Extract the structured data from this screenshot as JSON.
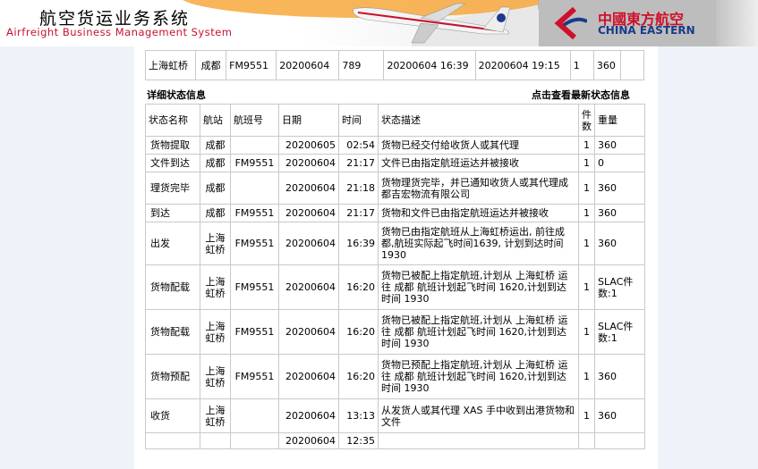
{
  "header": {
    "title_cn": "航空货运业务系统",
    "title_en": "Airfreight Business Management System",
    "logo_cn": "中國東方航空",
    "logo_en": "CHINA EASTERN"
  },
  "summary": {
    "cells": [
      "上海虹桥",
      "成都",
      "FM9551",
      "20200604",
      "789",
      "20200604 16:39",
      "20200604 19:15",
      "1",
      "360",
      ""
    ]
  },
  "section": {
    "title": "详细状态信息",
    "refresh_link": "点击查看最新状态信息"
  },
  "table": {
    "headers": [
      "状态名称",
      "航站",
      "航班号",
      "日期",
      "时间",
      "状态描述",
      "件数",
      "重量"
    ],
    "rows": [
      [
        "货物提取",
        "成都",
        "",
        "20200605",
        "02:54",
        "货物已经交付给收货人或其代理",
        "1",
        "360"
      ],
      [
        "文件到达",
        "成都",
        "FM9551",
        "20200604",
        "21:17",
        "文件已由指定航班运达并被接收",
        "1",
        "0"
      ],
      [
        "理货完毕",
        "成都",
        "",
        "20200604",
        "21:18",
        "货物理货完毕，并已通知收货人或其代理成都吉宏物流有限公司",
        "1",
        "360"
      ],
      [
        "到达",
        "成都",
        "FM9551",
        "20200604",
        "21:17",
        "货物和文件已由指定航班运达并被接收",
        "1",
        "360"
      ],
      [
        "出发",
        "上海虹桥",
        "FM9551",
        "20200604",
        "16:39",
        "货物已由指定航班从上海虹桥运出, 前往成都,航班实际起飞时间1639, 计划到达时间1930",
        "1",
        "360"
      ],
      [
        "货物配载",
        "上海虹桥",
        "FM9551",
        "20200604",
        "16:20",
        "货物已被配上指定航班,计划从 上海虹桥 运往 成都 航班计划起飞时间 1620,计划到达时间 1930",
        "1",
        "SLAC件数:1"
      ],
      [
        "货物配载",
        "上海虹桥",
        "FM9551",
        "20200604",
        "16:20",
        "货物已被配上指定航班,计划从 上海虹桥 运往 成都 航班计划起飞时间 1620,计划到达时间 1930",
        "1",
        "SLAC件数:1"
      ],
      [
        "货物预配",
        "上海虹桥",
        "FM9551",
        "20200604",
        "16:20",
        "货物已预配上指定航班,计划从 上海虹桥 运往 成都 航班计划起飞时间 1620,计划到达时间 1930",
        "1",
        "360"
      ],
      [
        "收货",
        "上海虹桥",
        "",
        "20200604",
        "13:13",
        "从发货人或其代理 XAS 手中收到出港货物和文件",
        "1",
        "360"
      ],
      [
        "",
        "",
        "",
        "20200604",
        "12:35",
        "",
        "",
        ""
      ]
    ]
  }
}
